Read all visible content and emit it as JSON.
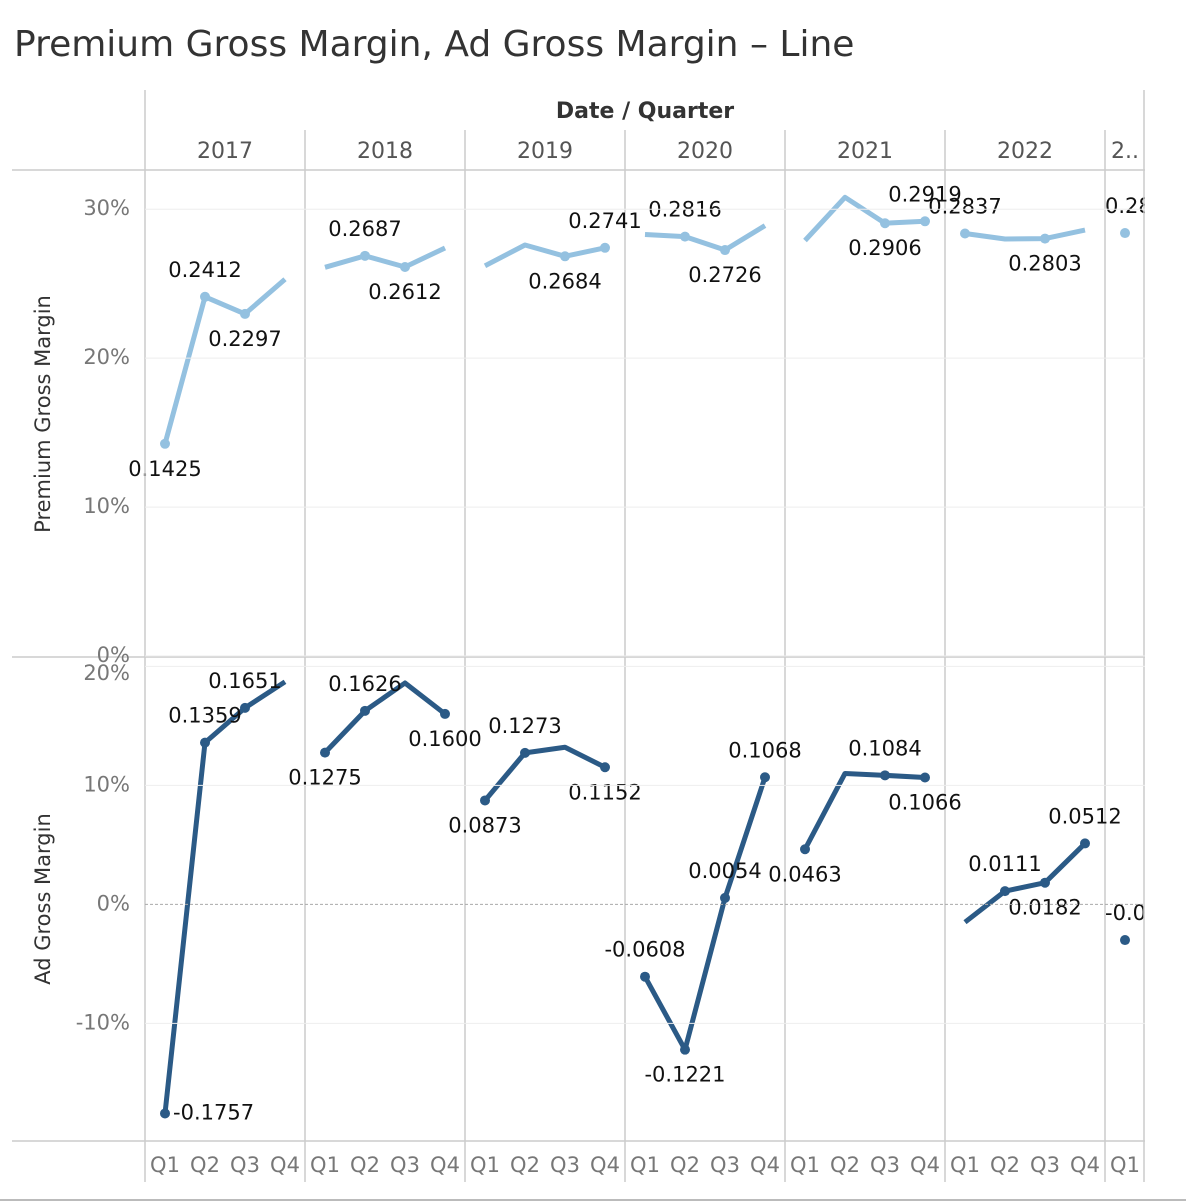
{
  "chart_data": {
    "type": "line",
    "title": "Premium Gross Margin, Ad Gross Margin – Line",
    "column_header": "Date / Quarter",
    "year_groups": [
      {
        "label": "2017",
        "quarters": [
          "Q1",
          "Q2",
          "Q3",
          "Q4"
        ]
      },
      {
        "label": "2018",
        "quarters": [
          "Q1",
          "Q2",
          "Q3",
          "Q4"
        ]
      },
      {
        "label": "2019",
        "quarters": [
          "Q1",
          "Q2",
          "Q3",
          "Q4"
        ]
      },
      {
        "label": "2020",
        "quarters": [
          "Q1",
          "Q2",
          "Q3",
          "Q4"
        ]
      },
      {
        "label": "2021",
        "quarters": [
          "Q1",
          "Q2",
          "Q3",
          "Q4"
        ]
      },
      {
        "label": "2022",
        "quarters": [
          "Q1",
          "Q2",
          "Q3",
          "Q4"
        ]
      },
      {
        "label": "2..",
        "quarters": [
          "Q1"
        ]
      }
    ],
    "panes": [
      {
        "axis_label": "Premium Gross Margin",
        "color": "#94c1e0",
        "ylim": [
          0,
          32.5
        ],
        "yticks": [
          {
            "value": 0,
            "label": "0%"
          },
          {
            "value": 10,
            "label": "10%"
          },
          {
            "value": 20,
            "label": "20%"
          },
          {
            "value": 30,
            "label": "30%"
          }
        ],
        "values": [
          14.25,
          24.12,
          22.97,
          25.3,
          26.1,
          26.87,
          26.12,
          27.4,
          26.2,
          27.6,
          26.84,
          27.41,
          28.3,
          28.16,
          27.26,
          28.9,
          27.9,
          30.8,
          29.06,
          29.19,
          28.37,
          28.0,
          28.03,
          28.6,
          28.4
        ],
        "value_labels": [
          "0.1425",
          "0.2412",
          "0.2297",
          null,
          null,
          "0.2687",
          "0.2612",
          null,
          null,
          null,
          "0.2684",
          "0.2741",
          null,
          "0.2816",
          "0.2726",
          null,
          null,
          null,
          "0.2906",
          "0.2919",
          "0.2837",
          null,
          "0.2803",
          null,
          "0.28"
        ]
      },
      {
        "axis_label": "Ad Gross Margin",
        "color": "#2b5a86",
        "ylim": [
          -19.8,
          20.7
        ],
        "yticks": [
          {
            "value": -10,
            "label": "-10%"
          },
          {
            "value": 0,
            "label": "0%"
          },
          {
            "value": 10,
            "label": "10%"
          },
          {
            "value": 20,
            "label": "20%"
          }
        ],
        "values": [
          -17.57,
          13.59,
          16.51,
          18.7,
          12.75,
          16.26,
          18.6,
          16.0,
          8.73,
          12.73,
          13.2,
          11.52,
          -6.08,
          -12.21,
          0.54,
          10.68,
          4.63,
          11.0,
          10.84,
          10.66,
          -1.5,
          1.11,
          1.82,
          5.12,
          -3.0
        ],
        "value_labels": [
          "-0.1757",
          "0.1359",
          "0.1651",
          null,
          "0.1275",
          "0.1626",
          null,
          "0.1600",
          "0.0873",
          "0.1273",
          null,
          "0.1152",
          "-0.0608",
          "-0.1221",
          "0.0054",
          "0.1068",
          "0.0463",
          null,
          "0.1084",
          "0.1066",
          null,
          "0.0111",
          "0.0182",
          "0.0512",
          "-0.0"
        ]
      }
    ]
  }
}
